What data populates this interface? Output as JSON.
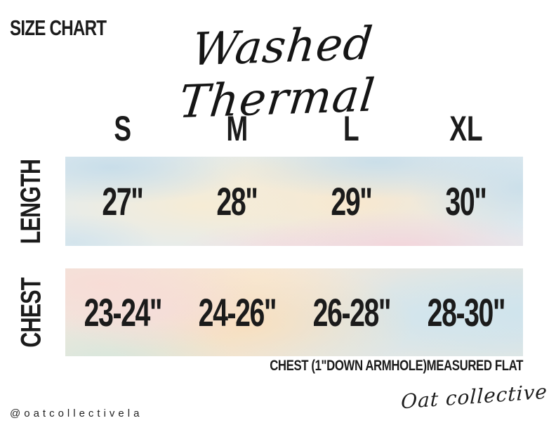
{
  "page": {
    "label": "SIZE CHART",
    "product_title": "Washed Thermal",
    "social_handle": "@oatcollectivela",
    "brand_logo": "Oat collective"
  },
  "chart_data": {
    "type": "table",
    "title": "Washed Thermal",
    "categories": [
      "S",
      "M",
      "L",
      "XL"
    ],
    "rows": [
      {
        "label": "LENGTH",
        "values": [
          "27\"",
          "28\"",
          "29\"",
          "30\""
        ]
      },
      {
        "label": "CHEST",
        "values": [
          "23-24\"",
          "24-26\"",
          "26-28\"",
          "28-30\""
        ]
      }
    ],
    "footnote": "CHEST (1\"DOWN ARMHOLE)MEASURED FLAT",
    "layout": {
      "row_labels_rotated": true,
      "band_style": "pastel watercolor wash"
    }
  },
  "colors": {
    "text": "#1b1b1b",
    "band-blue": "#c7dde9",
    "band-cream": "#f6ecd6",
    "band-peach": "#f9dfc0",
    "band-pink": "#f4d4da",
    "band-mint": "#d6e7dd"
  }
}
